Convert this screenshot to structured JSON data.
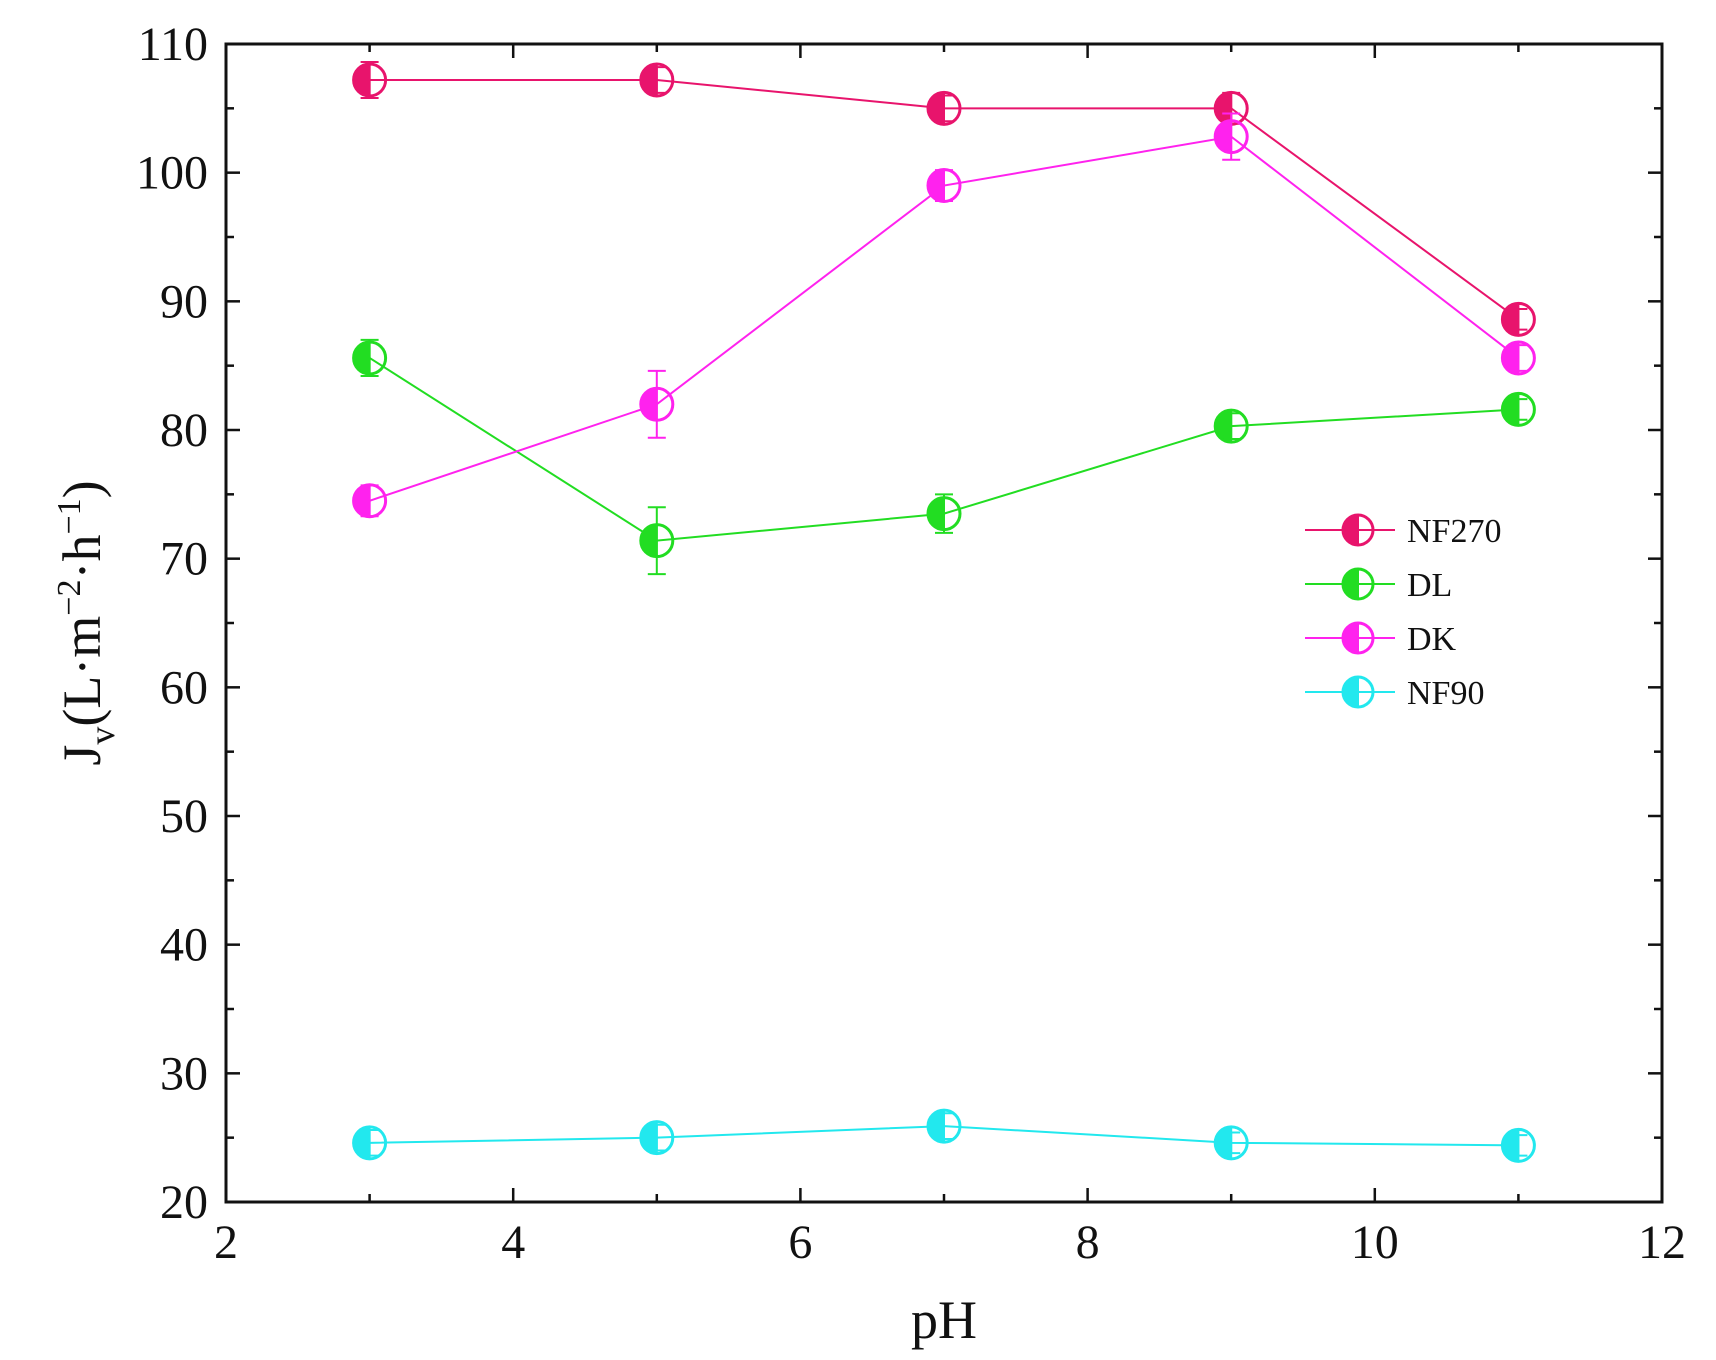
{
  "chart_data": {
    "type": "line",
    "title": "",
    "xlabel": "pH",
    "ylabel": {
      "main": "J",
      "sub": "v",
      "unit_prefix": "(L·m",
      "exp1": "−2",
      "mid": "·h",
      "exp2": "−1",
      "suffix": ")"
    },
    "xlim": [
      2,
      12
    ],
    "ylim": [
      20,
      110
    ],
    "x_ticks": [
      2,
      4,
      6,
      8,
      10,
      12
    ],
    "x_tick_labels": [
      "2",
      "4",
      "6",
      "8",
      "10",
      "12"
    ],
    "y_ticks": [
      20,
      30,
      40,
      50,
      60,
      70,
      80,
      90,
      100,
      110
    ],
    "y_tick_labels": [
      "20",
      "30",
      "40",
      "50",
      "60",
      "70",
      "80",
      "90",
      "100",
      "110"
    ],
    "legend_position": "right-middle",
    "grid": false,
    "series": [
      {
        "name": "NF270",
        "color": "#e8146c",
        "x": [
          3,
          5,
          7,
          9,
          11
        ],
        "y": [
          107.2,
          107.2,
          105.0,
          105.0,
          88.6
        ],
        "err": [
          1.4,
          1.0,
          1.0,
          1.2,
          0.8
        ]
      },
      {
        "name": "DL",
        "color": "#22dd22",
        "x": [
          3,
          5,
          7,
          9,
          11
        ],
        "y": [
          85.6,
          71.4,
          73.5,
          80.3,
          81.6
        ],
        "err": [
          1.4,
          2.6,
          1.5,
          1.0,
          0.8
        ]
      },
      {
        "name": "DK",
        "color": "#ff22ee",
        "x": [
          3,
          5,
          7,
          9,
          11
        ],
        "y": [
          74.5,
          82.0,
          99.0,
          102.8,
          85.6
        ],
        "err": [
          1.2,
          2.6,
          1.2,
          1.8,
          1.0
        ]
      },
      {
        "name": "NF90",
        "color": "#22e8ee",
        "x": [
          3,
          5,
          7,
          9,
          11
        ],
        "y": [
          24.6,
          25.0,
          25.9,
          24.6,
          24.4
        ],
        "err": [
          1.0,
          1.0,
          1.0,
          0.8,
          0.8
        ]
      }
    ]
  }
}
